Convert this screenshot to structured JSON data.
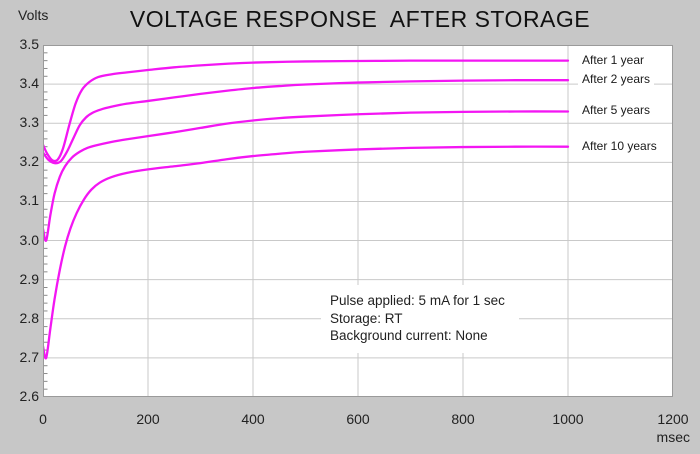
{
  "chart_data": {
    "type": "line",
    "title": "VOLTAGE RESPONSE  AFTER STORAGE",
    "ylabel": "Volts",
    "xlabel": "msec",
    "xlim": [
      0,
      1200
    ],
    "ylim": [
      2.6,
      3.5
    ],
    "x_tick_labels": [
      "0",
      "200",
      "400",
      "600",
      "800",
      "1000",
      "1200"
    ],
    "y_tick_labels": [
      "3.5",
      "3.4",
      "3.3",
      "3.2",
      "3.1",
      "3.0",
      "2.9",
      "2.8",
      "2.7",
      "2.6"
    ],
    "y_minor_step": 0.02,
    "grid": true,
    "line_color": "#f316f3",
    "plot_bg": "#ffffff",
    "page_bg": "#c7c7c7",
    "grid_color": "#c9c9c9",
    "border_color": "#9a9a9a",
    "series": [
      {
        "name": "After 1 year",
        "points": [
          [
            0,
            3.245
          ],
          [
            8,
            3.222
          ],
          [
            18,
            3.205
          ],
          [
            28,
            3.207
          ],
          [
            38,
            3.235
          ],
          [
            50,
            3.295
          ],
          [
            62,
            3.35
          ],
          [
            74,
            3.385
          ],
          [
            88,
            3.405
          ],
          [
            105,
            3.418
          ],
          [
            130,
            3.425
          ],
          [
            160,
            3.43
          ],
          [
            200,
            3.436
          ],
          [
            250,
            3.443
          ],
          [
            300,
            3.448
          ],
          [
            350,
            3.452
          ],
          [
            400,
            3.455
          ],
          [
            500,
            3.458
          ],
          [
            600,
            3.459
          ],
          [
            700,
            3.46
          ],
          [
            800,
            3.46
          ],
          [
            900,
            3.46
          ],
          [
            1000,
            3.46
          ]
        ]
      },
      {
        "name": "After 2 years",
        "points": [
          [
            0,
            3.225
          ],
          [
            10,
            3.207
          ],
          [
            22,
            3.198
          ],
          [
            34,
            3.203
          ],
          [
            46,
            3.228
          ],
          [
            58,
            3.262
          ],
          [
            70,
            3.295
          ],
          [
            82,
            3.315
          ],
          [
            95,
            3.327
          ],
          [
            110,
            3.335
          ],
          [
            130,
            3.342
          ],
          [
            160,
            3.35
          ],
          [
            200,
            3.357
          ],
          [
            250,
            3.366
          ],
          [
            300,
            3.375
          ],
          [
            350,
            3.383
          ],
          [
            400,
            3.39
          ],
          [
            450,
            3.395
          ],
          [
            500,
            3.399
          ],
          [
            600,
            3.404
          ],
          [
            700,
            3.407
          ],
          [
            800,
            3.409
          ],
          [
            900,
            3.41
          ],
          [
            1000,
            3.41
          ]
        ]
      },
      {
        "name": "After 5 years",
        "points": [
          [
            0,
            3.03
          ],
          [
            6,
            3.0
          ],
          [
            14,
            3.065
          ],
          [
            22,
            3.12
          ],
          [
            32,
            3.163
          ],
          [
            42,
            3.19
          ],
          [
            55,
            3.212
          ],
          [
            70,
            3.227
          ],
          [
            85,
            3.237
          ],
          [
            100,
            3.243
          ],
          [
            130,
            3.252
          ],
          [
            160,
            3.259
          ],
          [
            200,
            3.267
          ],
          [
            250,
            3.277
          ],
          [
            300,
            3.288
          ],
          [
            350,
            3.299
          ],
          [
            400,
            3.307
          ],
          [
            450,
            3.313
          ],
          [
            500,
            3.317
          ],
          [
            600,
            3.323
          ],
          [
            700,
            3.327
          ],
          [
            800,
            3.329
          ],
          [
            900,
            3.33
          ],
          [
            1000,
            3.33
          ]
        ]
      },
      {
        "name": "After 10 years",
        "points": [
          [
            0,
            2.73
          ],
          [
            6,
            2.7
          ],
          [
            14,
            2.775
          ],
          [
            22,
            2.85
          ],
          [
            32,
            2.925
          ],
          [
            42,
            2.985
          ],
          [
            52,
            3.03
          ],
          [
            64,
            3.07
          ],
          [
            78,
            3.105
          ],
          [
            92,
            3.13
          ],
          [
            108,
            3.148
          ],
          [
            130,
            3.162
          ],
          [
            160,
            3.173
          ],
          [
            200,
            3.182
          ],
          [
            250,
            3.19
          ],
          [
            300,
            3.198
          ],
          [
            350,
            3.208
          ],
          [
            400,
            3.216
          ],
          [
            450,
            3.222
          ],
          [
            500,
            3.227
          ],
          [
            600,
            3.233
          ],
          [
            700,
            3.237
          ],
          [
            800,
            3.239
          ],
          [
            900,
            3.24
          ],
          [
            1000,
            3.24
          ]
        ]
      }
    ],
    "annotation": {
      "lines": [
        "Pulse applied: 5 mA for 1 sec",
        "Storage: RT",
        "Background current: None"
      ]
    }
  }
}
